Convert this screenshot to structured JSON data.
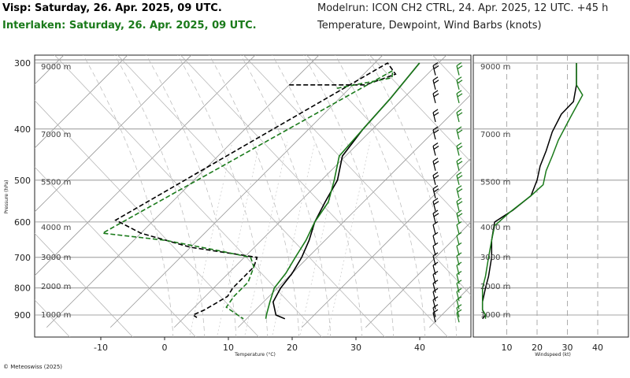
{
  "header": {
    "location_primary": "Visp: Saturday, 26. Apr. 2025, 09 UTC.",
    "location_secondary": "Interlaken: Saturday, 26. Apr. 2025, 09 UTC.",
    "model_run": "Modelrun: ICON CH2 CTRL, 24. Apr. 2025, 12 UTC. +45 h",
    "variables": "Temperature, Dewpoint, Wind Barbs (knots)"
  },
  "footer": {
    "credit": "© Meteoswiss (2025)"
  },
  "colors": {
    "visp": "#000000",
    "interlaken": "#1a7a1a",
    "grid": "#999999"
  },
  "chart_data": [
    {
      "type": "line",
      "subtype": "skew-T log-P",
      "xlabel": "Temperature (°C)",
      "ylabel": "Pressure (hPa)",
      "x_ticks": [
        -10,
        0,
        10,
        20,
        30,
        40
      ],
      "x_tick_labels": [
        "-10",
        "0",
        "10",
        "20",
        "30",
        "40"
      ],
      "y_ticks": [
        300,
        400,
        500,
        600,
        700,
        800,
        900
      ],
      "y_tick_labels": [
        "300",
        "400",
        "500",
        "600",
        "700",
        "800",
        "900"
      ],
      "height_labels": [
        "9000 m",
        "7000 m",
        "5500 m",
        "4000 m",
        "3000 m",
        "2000 m",
        "1000 m"
      ],
      "height_levels_hpa": [
        305,
        410,
        505,
        615,
        700,
        795,
        900
      ],
      "xlim": [
        -25,
        48
      ],
      "ylim": [
        950,
        295
      ],
      "series": [
        {
          "name": "Visp",
          "variable": "temperature",
          "color": "#000000",
          "style": "solid",
          "points": [
            [
              -3,
              300
            ],
            [
              -2,
              350
            ],
            [
              -1.5,
              400
            ],
            [
              -0.5,
              450
            ],
            [
              2.5,
              500
            ],
            [
              4,
              550
            ],
            [
              5.5,
              600
            ],
            [
              7.5,
              650
            ],
            [
              9,
              700
            ],
            [
              10,
              750
            ],
            [
              10.5,
              800
            ],
            [
              11.5,
              850
            ],
            [
              14,
              900
            ],
            [
              16,
              915
            ]
          ]
        },
        {
          "name": "Visp",
          "variable": "dewpoint",
          "color": "#000000",
          "style": "dashed",
          "points": [
            [
              -20,
              330
            ],
            [
              -8,
              330
            ],
            [
              -5,
              315
            ],
            [
              -8,
              300
            ],
            [
              -26,
              595
            ],
            [
              -20,
              630
            ],
            [
              -10,
              670
            ],
            [
              2,
              700
            ],
            [
              3,
              730
            ],
            [
              3,
              800
            ],
            [
              3.5,
              830
            ],
            [
              2,
              880
            ],
            [
              1,
              900
            ],
            [
              2,
              910
            ]
          ]
        },
        {
          "name": "Interlaken",
          "variable": "temperature",
          "color": "#1a7a1a",
          "style": "solid",
          "points": [
            [
              -3,
              300
            ],
            [
              -2,
              350
            ],
            [
              -1.5,
              400
            ],
            [
              -1,
              450
            ],
            [
              2,
              500
            ],
            [
              4.5,
              550
            ],
            [
              5.5,
              600
            ],
            [
              7,
              650
            ],
            [
              8,
              700
            ],
            [
              9,
              750
            ],
            [
              9.5,
              800
            ],
            [
              11,
              850
            ],
            [
              12.5,
              900
            ],
            [
              13,
              915
            ]
          ]
        },
        {
          "name": "Interlaken",
          "variable": "dewpoint",
          "color": "#1a7a1a",
          "style": "dashed",
          "points": [
            [
              -12,
              335
            ],
            [
              -5,
              320
            ],
            [
              -6,
              310
            ],
            [
              -26,
              630
            ],
            [
              -15,
              650
            ],
            [
              -5,
              680
            ],
            [
              1,
              700
            ],
            [
              3,
              730
            ],
            [
              4.5,
              780
            ],
            [
              4.5,
              830
            ],
            [
              5,
              870
            ],
            [
              7,
              890
            ],
            [
              8,
              900
            ],
            [
              9.5,
              915
            ]
          ]
        }
      ]
    },
    {
      "type": "line",
      "subtype": "wind speed profile",
      "xlabel": "Windspeed (kt)",
      "x_ticks": [
        10,
        20,
        30,
        40
      ],
      "x_tick_labels": [
        "10",
        "20",
        "30",
        "40"
      ],
      "xlim": [
        0,
        48
      ],
      "height_labels": [
        "9000 m",
        "7000 m",
        "5500 m",
        "4000 m",
        "3000 m",
        "2000 m",
        "1000 m"
      ],
      "series": [
        {
          "name": "Visp",
          "color": "#000000",
          "points": [
            [
              33,
              300
            ],
            [
              33,
              330
            ],
            [
              32,
              355
            ],
            [
              28,
              375
            ],
            [
              25,
              405
            ],
            [
              23,
              440
            ],
            [
              21,
              470
            ],
            [
              20,
              500
            ],
            [
              18,
              535
            ],
            [
              12,
              570
            ],
            [
              6,
              600
            ],
            [
              5,
              650
            ],
            [
              5,
              700
            ],
            [
              4,
              760
            ],
            [
              3,
              800
            ],
            [
              2,
              850
            ],
            [
              2,
              880
            ],
            [
              3,
              900
            ],
            [
              2,
              915
            ]
          ]
        },
        {
          "name": "Interlaken",
          "color": "#1a7a1a",
          "points": [
            [
              33,
              300
            ],
            [
              33,
              330
            ],
            [
              35,
              345
            ],
            [
              31,
              380
            ],
            [
              27,
              420
            ],
            [
              25,
              450
            ],
            [
              23,
              480
            ],
            [
              22,
              510
            ],
            [
              18,
              535
            ],
            [
              11,
              575
            ],
            [
              6,
              610
            ],
            [
              5,
              650
            ],
            [
              4,
              700
            ],
            [
              3,
              760
            ],
            [
              2,
              800
            ],
            [
              2,
              850
            ],
            [
              2,
              880
            ],
            [
              3,
              900
            ],
            [
              3,
              915
            ]
          ]
        }
      ]
    }
  ]
}
